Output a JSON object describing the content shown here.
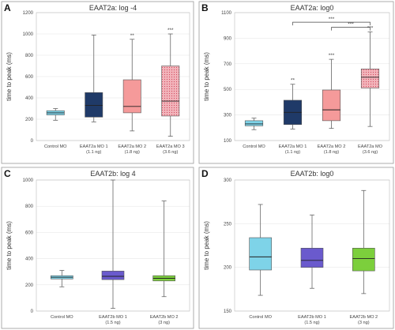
{
  "chart_data": [
    {
      "type": "boxplot",
      "panel_label": "A",
      "title": "EAAT2a: log -4",
      "ylabel": "time to peak (ms)",
      "ylim": [
        0,
        1200
      ],
      "yticks": [
        0,
        200,
        400,
        600,
        800,
        1000,
        1200
      ],
      "categories": [
        "Control MO",
        "EAAT2a MO 1",
        "EAAT2a MO 2",
        "EAAT2a MO 3"
      ],
      "sublabels": [
        "",
        "(1.1 ng)",
        "(1.8 ng)",
        "(3.6 ng)"
      ],
      "boxes": [
        {
          "min": 190,
          "q1": 240,
          "median": 260,
          "q3": 280,
          "max": 300,
          "color": "#7ed3e8",
          "pattern": "plain"
        },
        {
          "min": 175,
          "q1": 220,
          "median": 330,
          "q3": 450,
          "max": 990,
          "color": "#1f3a68",
          "pattern": "plain"
        },
        {
          "min": 90,
          "q1": 260,
          "median": 320,
          "q3": 570,
          "max": 950,
          "color": "#f59a9a",
          "pattern": "plain"
        },
        {
          "min": 40,
          "q1": 230,
          "median": 370,
          "q3": 700,
          "max": 1000,
          "color": "#ee9ea8",
          "pattern": "dots"
        }
      ],
      "significance": [
        "",
        "",
        "**",
        "***"
      ],
      "brackets": []
    },
    {
      "type": "boxplot",
      "panel_label": "B",
      "title": "EAAT2a: log0",
      "ylabel": "time to peak (ms)",
      "ylim": [
        100,
        1100
      ],
      "yticks": [
        100,
        300,
        500,
        700,
        900,
        1100
      ],
      "categories": [
        "Control MO",
        "EAAT2a MO 1",
        "EAAT2a MO 2",
        "EAAT2a MO"
      ],
      "sublabels": [
        "",
        "(1.1 ng)",
        "(1.8 ng)",
        "(3.6 ng)"
      ],
      "boxes": [
        {
          "min": 185,
          "q1": 215,
          "median": 230,
          "q3": 255,
          "max": 275,
          "color": "#7ed3e8",
          "pattern": "plain"
        },
        {
          "min": 190,
          "q1": 225,
          "median": 320,
          "q3": 415,
          "max": 540,
          "color": "#1f3a68",
          "pattern": "plain"
        },
        {
          "min": 195,
          "q1": 255,
          "median": 340,
          "q3": 495,
          "max": 735,
          "color": "#f59a9a",
          "pattern": "plain"
        },
        {
          "min": 210,
          "q1": 510,
          "median": 595,
          "q3": 660,
          "max": 950,
          "color": "#ee9ea8",
          "pattern": "dots"
        }
      ],
      "significance": [
        "",
        "**",
        "***",
        "***"
      ],
      "brackets": [
        {
          "from": 1,
          "to": 3,
          "label": "***",
          "y": 1025
        },
        {
          "from": 2,
          "to": 3,
          "label": "***",
          "y": 985
        }
      ]
    },
    {
      "type": "boxplot",
      "panel_label": "C",
      "title": "EAAT2b: log 4",
      "ylabel": "time to peak (ms)",
      "ylim": [
        0,
        1000
      ],
      "yticks": [
        0,
        200,
        400,
        600,
        800,
        1000
      ],
      "categories": [
        "Control MO",
        "EAAT2b MO 1",
        "EAAT2b MO 2"
      ],
      "sublabels": [
        "",
        "(1.5 ng)",
        "(3 ng)"
      ],
      "boxes": [
        {
          "min": 185,
          "q1": 245,
          "median": 258,
          "q3": 270,
          "max": 310,
          "color": "#7ed3e8",
          "pattern": "plain"
        },
        {
          "min": 20,
          "q1": 240,
          "median": 265,
          "q3": 305,
          "max": 1000,
          "color": "#6a5acd",
          "pattern": "plain"
        },
        {
          "min": 110,
          "q1": 230,
          "median": 250,
          "q3": 270,
          "max": 840,
          "color": "#7ccf3c",
          "pattern": "plain"
        }
      ],
      "significance": [
        "",
        "",
        ""
      ],
      "brackets": []
    },
    {
      "type": "boxplot",
      "panel_label": "D",
      "title": "EAAT2b: log0",
      "ylabel": "time to peak (ms)",
      "ylim": [
        150,
        300
      ],
      "yticks": [
        150,
        200,
        250,
        300
      ],
      "categories": [
        "Control MO",
        "EAAT2b MO 1",
        "EAAT2b MO 2"
      ],
      "sublabels": [
        "",
        "(1.5 ng)",
        "(3 ng)"
      ],
      "boxes": [
        {
          "min": 168,
          "q1": 197,
          "median": 212,
          "q3": 234,
          "max": 272,
          "color": "#7ed3e8",
          "pattern": "plain"
        },
        {
          "min": 176,
          "q1": 200,
          "median": 208,
          "q3": 222,
          "max": 260,
          "color": "#6a5acd",
          "pattern": "plain"
        },
        {
          "min": 170,
          "q1": 196,
          "median": 210,
          "q3": 222,
          "max": 288,
          "color": "#7ccf3c",
          "pattern": "plain"
        }
      ],
      "significance": [
        "",
        "",
        ""
      ],
      "brackets": []
    }
  ]
}
